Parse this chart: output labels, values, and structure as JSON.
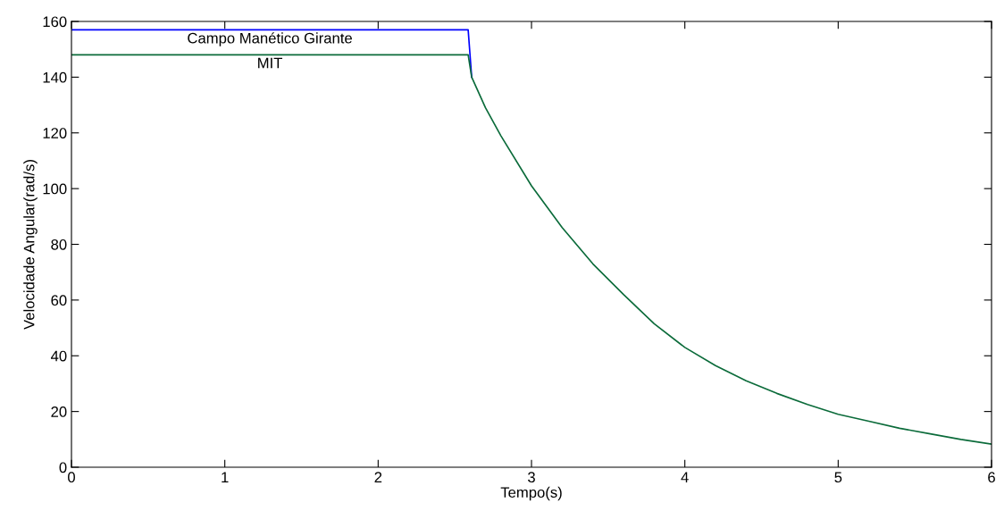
{
  "chart_data": {
    "type": "line",
    "xlabel": "Tempo(s)",
    "ylabel": "Velocidade Angular(rad/s)",
    "xlim": [
      0,
      6
    ],
    "xticks": [
      0,
      1,
      2,
      3,
      4,
      5,
      6
    ],
    "ylim": [
      0,
      160
    ],
    "yticks": [
      0,
      20,
      40,
      60,
      80,
      100,
      120,
      140,
      160
    ],
    "grid": false,
    "legend": false,
    "series": [
      {
        "name": "Campo Manético Girante",
        "color": "#0000ff",
        "x": [
          0,
          2.587,
          2.61
        ],
        "values": [
          157,
          157,
          140
        ]
      },
      {
        "name": "MIT",
        "color": "#0b6b3a",
        "x": [
          0,
          2.587,
          2.61,
          2.7,
          2.8,
          3.0,
          3.2,
          3.4,
          3.6,
          3.8,
          4.0,
          4.2,
          4.4,
          4.6,
          4.8,
          5.0,
          5.2,
          5.4,
          5.6,
          5.8,
          6.0
        ],
        "values": [
          148,
          148,
          140,
          129,
          119,
          101,
          86,
          73,
          62,
          51.5,
          43,
          36.5,
          31,
          26.5,
          22.5,
          19,
          16.5,
          14,
          12,
          10,
          8.3
        ]
      }
    ]
  }
}
